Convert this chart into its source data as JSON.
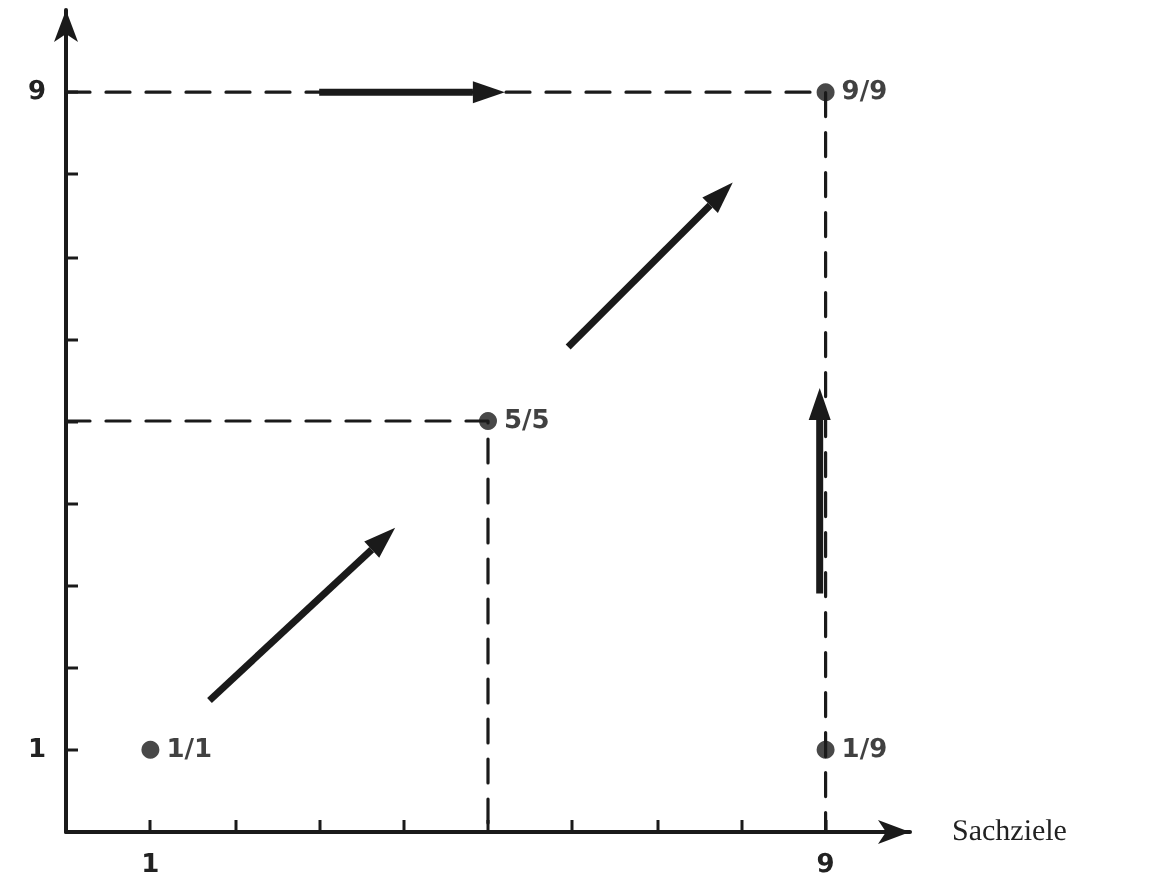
{
  "chart_data": {
    "type": "scatter",
    "xlabel": "Sachziele",
    "xlim": [
      0,
      10
    ],
    "ylim": [
      0,
      10
    ],
    "xticks": [
      1,
      {
        "value": 2,
        "label": null
      },
      {
        "value": 3,
        "label": null
      },
      {
        "value": 4,
        "label": null
      },
      {
        "value": 5,
        "label": null
      },
      {
        "value": 6,
        "label": null
      },
      {
        "value": 7,
        "label": null
      },
      {
        "value": 8,
        "label": null
      },
      9
    ],
    "yticks": [
      1,
      {
        "value": 2,
        "label": null
      },
      {
        "value": 3,
        "label": null
      },
      {
        "value": 4,
        "label": null
      },
      {
        "value": 5,
        "label": null
      },
      {
        "value": 6,
        "label": null
      },
      {
        "value": 7,
        "label": null
      },
      {
        "value": 8,
        "label": null
      },
      9
    ],
    "grid": false,
    "marker": "circle",
    "annotations": [
      {
        "text": "1/1",
        "x": 1,
        "y": 1
      },
      {
        "text": "5/5",
        "x": 5,
        "y": 5
      },
      {
        "text": "9/9",
        "x": 9,
        "y": 9
      },
      {
        "text": "1/9",
        "x": 9,
        "y": 1
      }
    ],
    "series": [
      {
        "type": "line",
        "color": "#1a1a1a",
        "x": [
          0,
          9,
          9
        ],
        "values": [
          9,
          9,
          0
        ],
        "line_style": "dashed",
        "marker": "none"
      },
      {
        "type": "line",
        "color": "#1a1a1a",
        "x": [
          0,
          5,
          5
        ],
        "values": [
          5,
          5,
          0
        ],
        "line_style": "dashed",
        "marker": "none"
      },
      {
        "color": "#1a1a1a",
        "x": [
          1,
          5,
          9,
          9
        ],
        "values": [
          1,
          5,
          9,
          1
        ]
      }
    ]
  }
}
